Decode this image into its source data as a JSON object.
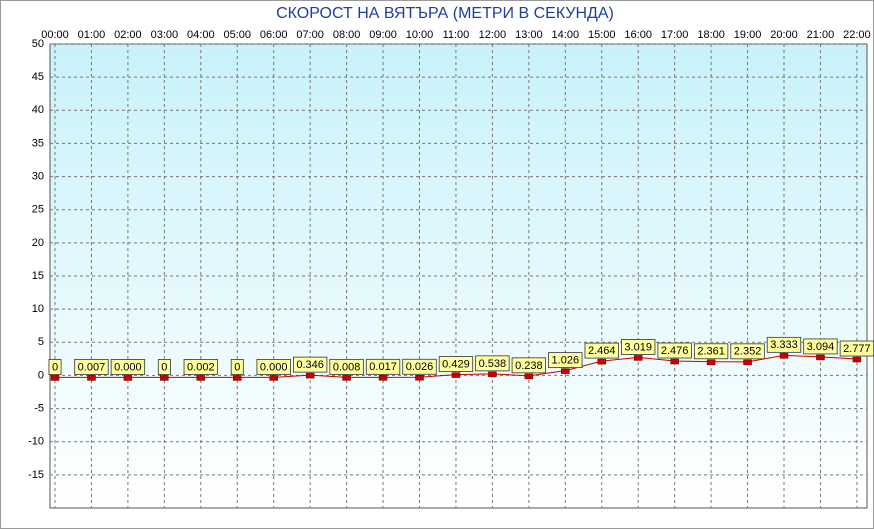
{
  "chart_data": {
    "type": "line",
    "title": "СКОРОСТ НА ВЯТЪРА (МЕТРИ В СЕКУНДА)",
    "categories": [
      "00:00",
      "01:00",
      "02:00",
      "03:00",
      "04:00",
      "05:00",
      "06:00",
      "07:00",
      "08:00",
      "09:00",
      "10:00",
      "11:00",
      "12:00",
      "13:00",
      "14:00",
      "15:00",
      "16:00",
      "17:00",
      "18:00",
      "19:00",
      "20:00",
      "21:00",
      "22:00"
    ],
    "series": [
      {
        "name": "СКОРОСТ НА ВЯТЪРА",
        "color": "#cc0000",
        "values": [
          0,
          0.007,
          0,
          0,
          0.002,
          0,
          0,
          0.346,
          0.008,
          0.017,
          0.026,
          0.429,
          0.538,
          0.238,
          1.026,
          2.464,
          3.019,
          2.476,
          2.361,
          2.352,
          3.333,
          3.094,
          2.777
        ],
        "value_labels": [
          "0",
          "0.007",
          "0.000",
          "0",
          "0.002",
          "0",
          "0.000",
          "0.346",
          "0.008",
          "0.017",
          "0.026",
          "0.429",
          "0.538",
          "0.238",
          "1.026",
          "2.464",
          "3.019",
          "2.476",
          "2.361",
          "2.352",
          "3.333",
          "3.094",
          "2.777"
        ]
      }
    ],
    "ylim": [
      -20,
      50
    ],
    "yticks": [
      -15,
      -10,
      -5,
      0,
      5,
      10,
      15,
      20,
      25,
      30,
      35,
      40,
      45,
      50
    ],
    "grid": true
  }
}
